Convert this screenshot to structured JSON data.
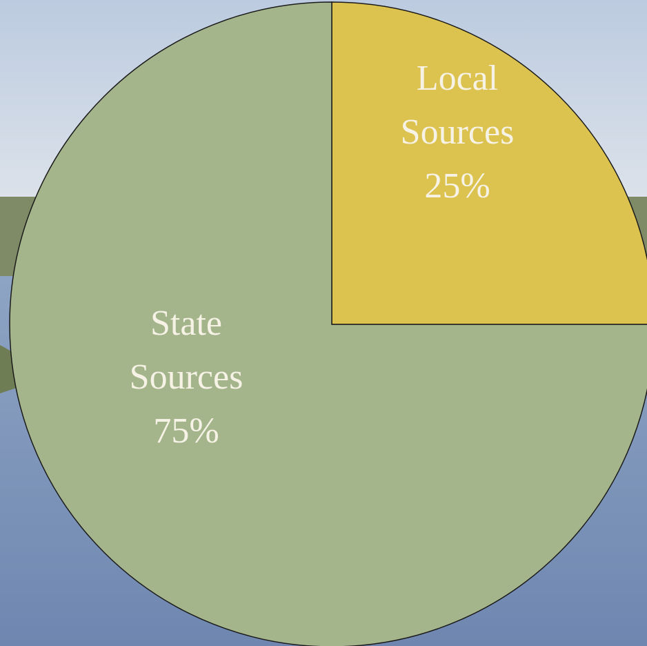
{
  "chart_data": {
    "type": "pie",
    "categories": [
      "Local Sources",
      "State Sources"
    ],
    "values": [
      25,
      75
    ],
    "value_labels": [
      "25%",
      "75%"
    ],
    "colors": [
      "#dcc24f",
      "#a4b48b"
    ]
  }
}
